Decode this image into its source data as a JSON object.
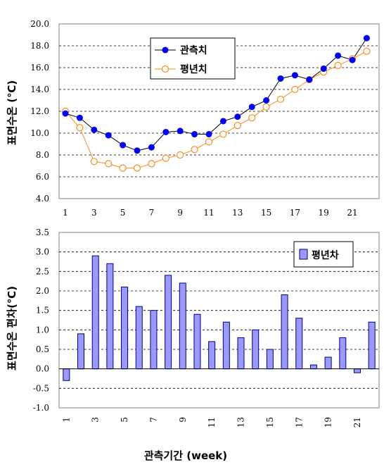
{
  "chart_data": [
    {
      "type": "line",
      "ylabel": "표면수온 (℃)",
      "ylim": [
        4.0,
        20.0
      ],
      "ytick_labels": [
        "4.0",
        "6.0",
        "8.0",
        "10.0",
        "12.0",
        "14.0",
        "16.0",
        "18.0",
        "20.0"
      ],
      "xtick_labels": [
        "1",
        "3",
        "5",
        "7",
        "9",
        "11",
        "13",
        "15",
        "17",
        "19",
        "21"
      ],
      "x": [
        1,
        2,
        3,
        4,
        5,
        6,
        7,
        8,
        9,
        10,
        11,
        12,
        13,
        14,
        15,
        16,
        17,
        18,
        19,
        20,
        21,
        22
      ],
      "grid": "horizontal dashed",
      "legend_position": "top-center",
      "series": [
        {
          "name": "관측치",
          "color": "#0000ff",
          "marker": "filled-circle",
          "values": [
            11.8,
            11.4,
            10.3,
            9.8,
            8.9,
            8.4,
            8.7,
            10.1,
            10.2,
            9.9,
            9.9,
            11.1,
            11.5,
            12.4,
            13.0,
            15.0,
            15.3,
            14.9,
            15.9,
            17.1,
            16.7,
            18.7
          ]
        },
        {
          "name": "평년치",
          "color": "#ff8c1a",
          "marker": "open-circle",
          "values": [
            12.0,
            10.5,
            7.4,
            7.2,
            6.8,
            6.8,
            7.2,
            7.7,
            8.0,
            8.5,
            9.2,
            9.9,
            10.7,
            11.4,
            12.4,
            13.1,
            14.0,
            14.9,
            15.6,
            16.2,
            16.8,
            17.5
          ]
        }
      ]
    },
    {
      "type": "bar",
      "ylabel": "표면수온 편차(℃)",
      "ylim": [
        -1.0,
        3.5
      ],
      "ytick_labels": [
        "-1.0",
        "-0.5",
        "0.0",
        "0.5",
        "1.0",
        "1.5",
        "2.0",
        "2.5",
        "3.0",
        "3.5"
      ],
      "xtick_labels": [
        "1",
        "3",
        "5",
        "7",
        "9",
        "11",
        "13",
        "15",
        "17",
        "19",
        "21"
      ],
      "xlabel": "관측기간 (week)",
      "x": [
        1,
        2,
        3,
        4,
        5,
        6,
        7,
        8,
        9,
        10,
        11,
        12,
        13,
        14,
        15,
        16,
        17,
        18,
        19,
        20,
        21,
        22
      ],
      "grid": "horizontal dashed",
      "legend_position": "top-right",
      "series": [
        {
          "name": "평년차",
          "color": "#9999ff",
          "values": [
            -0.3,
            0.9,
            2.9,
            2.7,
            2.1,
            1.6,
            1.5,
            2.4,
            2.2,
            1.4,
            0.7,
            1.2,
            0.8,
            1.0,
            0.5,
            1.9,
            1.3,
            0.1,
            0.3,
            0.8,
            -0.1,
            1.2
          ]
        }
      ]
    }
  ]
}
